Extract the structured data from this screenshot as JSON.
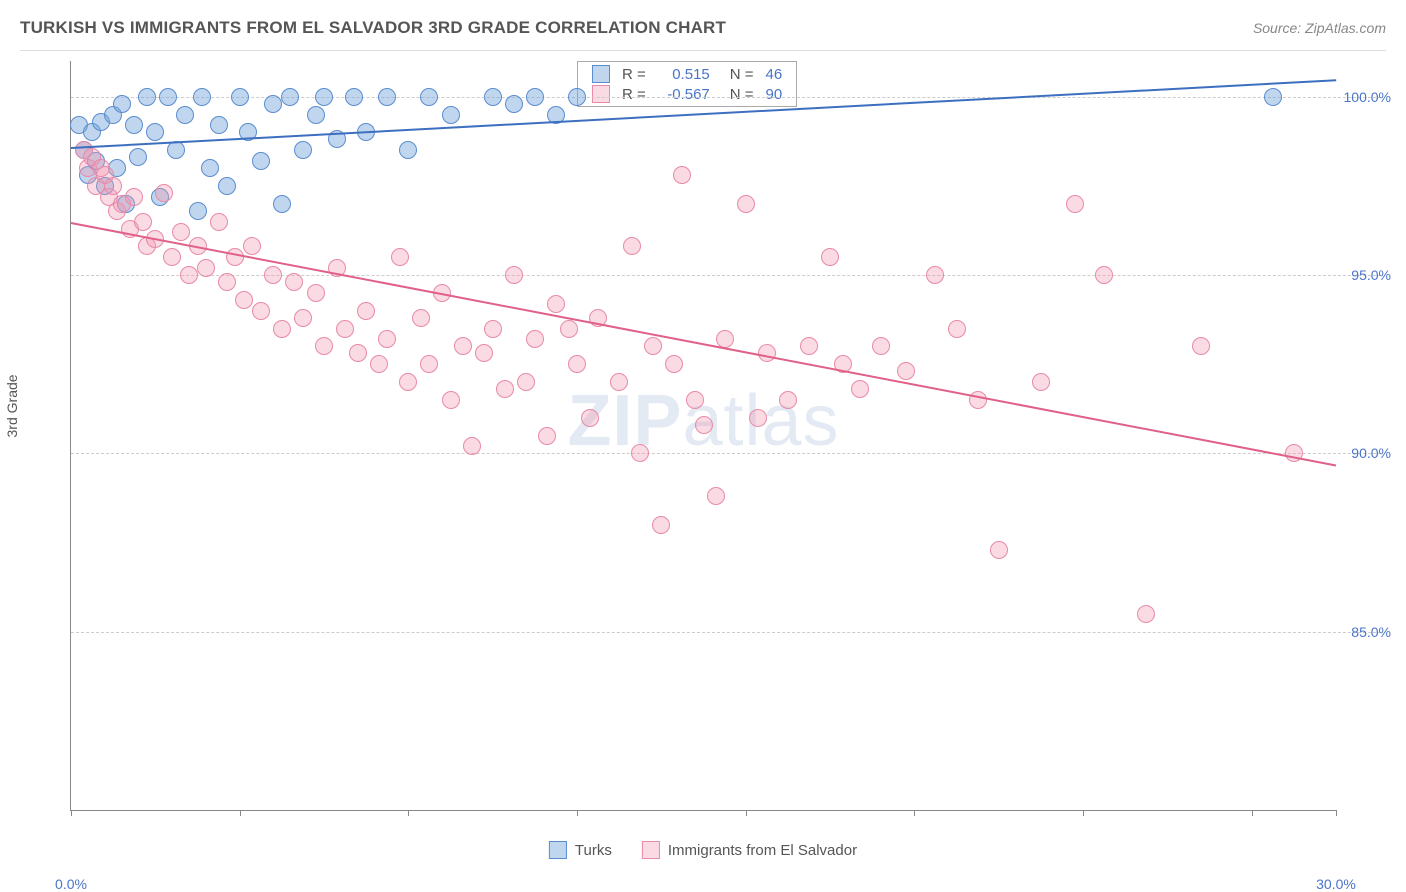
{
  "title": "TURKISH VS IMMIGRANTS FROM EL SALVADOR 3RD GRADE CORRELATION CHART",
  "source": "Source: ZipAtlas.com",
  "ylabel": "3rd Grade",
  "watermark_bold": "ZIP",
  "watermark_rest": "atlas",
  "chart": {
    "type": "scatter",
    "xlim": [
      0,
      30
    ],
    "ylim": [
      80,
      101
    ],
    "xticks": [
      0,
      4,
      8,
      12,
      16,
      20,
      24,
      28,
      30
    ],
    "xtick_labels": {
      "0": "0.0%",
      "30": "30.0%"
    },
    "yticks": [
      85,
      90,
      95,
      100
    ],
    "ytick_labels": {
      "85": "85.0%",
      "90": "90.0%",
      "95": "95.0%",
      "100": "100.0%"
    },
    "background_color": "#ffffff",
    "grid_color": "#cccccc",
    "axis_color": "#888888",
    "tick_label_color": "#4a74c9",
    "marker_radius": 9,
    "marker_border_width": 1.5,
    "line_width": 2
  },
  "series": [
    {
      "name": "Turks",
      "fill": "rgba(115,165,220,0.45)",
      "stroke": "#5a8dce",
      "line_color": "#3d6fc0",
      "R_label": "R =",
      "R_value": "0.515",
      "N_label": "N =",
      "N_value": "46",
      "regression": {
        "x1": 0,
        "y1": 98.6,
        "x2": 30,
        "y2": 100.5
      },
      "points": [
        [
          0.2,
          99.2
        ],
        [
          0.3,
          98.5
        ],
        [
          0.4,
          97.8
        ],
        [
          0.5,
          99.0
        ],
        [
          0.6,
          98.2
        ],
        [
          0.7,
          99.3
        ],
        [
          0.8,
          97.5
        ],
        [
          1.0,
          99.5
        ],
        [
          1.1,
          98.0
        ],
        [
          1.2,
          99.8
        ],
        [
          1.3,
          97.0
        ],
        [
          1.5,
          99.2
        ],
        [
          1.6,
          98.3
        ],
        [
          1.8,
          100.0
        ],
        [
          2.0,
          99.0
        ],
        [
          2.1,
          97.2
        ],
        [
          2.3,
          100.0
        ],
        [
          2.5,
          98.5
        ],
        [
          2.7,
          99.5
        ],
        [
          3.0,
          96.8
        ],
        [
          3.1,
          100.0
        ],
        [
          3.3,
          98.0
        ],
        [
          3.5,
          99.2
        ],
        [
          3.7,
          97.5
        ],
        [
          4.0,
          100.0
        ],
        [
          4.2,
          99.0
        ],
        [
          4.5,
          98.2
        ],
        [
          4.8,
          99.8
        ],
        [
          5.0,
          97.0
        ],
        [
          5.2,
          100.0
        ],
        [
          5.5,
          98.5
        ],
        [
          5.8,
          99.5
        ],
        [
          6.0,
          100.0
        ],
        [
          6.3,
          98.8
        ],
        [
          6.7,
          100.0
        ],
        [
          7.0,
          99.0
        ],
        [
          7.5,
          100.0
        ],
        [
          8.0,
          98.5
        ],
        [
          8.5,
          100.0
        ],
        [
          9.0,
          99.5
        ],
        [
          10.0,
          100.0
        ],
        [
          10.5,
          99.8
        ],
        [
          11.0,
          100.0
        ],
        [
          11.5,
          99.5
        ],
        [
          12.0,
          100.0
        ],
        [
          28.5,
          100.0
        ]
      ]
    },
    {
      "name": "Immigrants from El Salvador",
      "fill": "rgba(240,150,175,0.35)",
      "stroke": "#e88aa8",
      "line_color": "#e06088",
      "R_label": "R =",
      "R_value": "-0.567",
      "N_label": "N =",
      "N_value": "90",
      "regression": {
        "x1": 0,
        "y1": 96.5,
        "x2": 30,
        "y2": 89.7
      },
      "points": [
        [
          0.3,
          98.5
        ],
        [
          0.4,
          98.0
        ],
        [
          0.5,
          98.3
        ],
        [
          0.6,
          97.5
        ],
        [
          0.7,
          98.0
        ],
        [
          0.8,
          97.8
        ],
        [
          0.9,
          97.2
        ],
        [
          1.0,
          97.5
        ],
        [
          1.1,
          96.8
        ],
        [
          1.2,
          97.0
        ],
        [
          1.4,
          96.3
        ],
        [
          1.5,
          97.2
        ],
        [
          1.7,
          96.5
        ],
        [
          1.8,
          95.8
        ],
        [
          2.0,
          96.0
        ],
        [
          2.2,
          97.3
        ],
        [
          2.4,
          95.5
        ],
        [
          2.6,
          96.2
        ],
        [
          2.8,
          95.0
        ],
        [
          3.0,
          95.8
        ],
        [
          3.2,
          95.2
        ],
        [
          3.5,
          96.5
        ],
        [
          3.7,
          94.8
        ],
        [
          3.9,
          95.5
        ],
        [
          4.1,
          94.3
        ],
        [
          4.3,
          95.8
        ],
        [
          4.5,
          94.0
        ],
        [
          4.8,
          95.0
        ],
        [
          5.0,
          93.5
        ],
        [
          5.3,
          94.8
        ],
        [
          5.5,
          93.8
        ],
        [
          5.8,
          94.5
        ],
        [
          6.0,
          93.0
        ],
        [
          6.3,
          95.2
        ],
        [
          6.5,
          93.5
        ],
        [
          6.8,
          92.8
        ],
        [
          7.0,
          94.0
        ],
        [
          7.3,
          92.5
        ],
        [
          7.5,
          93.2
        ],
        [
          7.8,
          95.5
        ],
        [
          8.0,
          92.0
        ],
        [
          8.3,
          93.8
        ],
        [
          8.5,
          92.5
        ],
        [
          8.8,
          94.5
        ],
        [
          9.0,
          91.5
        ],
        [
          9.3,
          93.0
        ],
        [
          9.5,
          90.2
        ],
        [
          9.8,
          92.8
        ],
        [
          10.0,
          93.5
        ],
        [
          10.3,
          91.8
        ],
        [
          10.5,
          95.0
        ],
        [
          10.8,
          92.0
        ],
        [
          11.0,
          93.2
        ],
        [
          11.3,
          90.5
        ],
        [
          11.5,
          94.2
        ],
        [
          11.8,
          93.5
        ],
        [
          12.0,
          92.5
        ],
        [
          12.3,
          91.0
        ],
        [
          12.5,
          93.8
        ],
        [
          13.0,
          92.0
        ],
        [
          13.3,
          95.8
        ],
        [
          13.5,
          90.0
        ],
        [
          13.8,
          93.0
        ],
        [
          14.0,
          88.0
        ],
        [
          14.3,
          92.5
        ],
        [
          14.5,
          97.8
        ],
        [
          14.8,
          91.5
        ],
        [
          15.0,
          90.8
        ],
        [
          15.3,
          88.8
        ],
        [
          15.5,
          93.2
        ],
        [
          16.0,
          97.0
        ],
        [
          16.3,
          91.0
        ],
        [
          16.5,
          92.8
        ],
        [
          17.0,
          91.5
        ],
        [
          17.5,
          93.0
        ],
        [
          18.0,
          95.5
        ],
        [
          18.3,
          92.5
        ],
        [
          18.7,
          91.8
        ],
        [
          19.2,
          93.0
        ],
        [
          19.8,
          92.3
        ],
        [
          20.5,
          95.0
        ],
        [
          21.0,
          93.5
        ],
        [
          21.5,
          91.5
        ],
        [
          22.0,
          87.3
        ],
        [
          23.0,
          92.0
        ],
        [
          23.8,
          97.0
        ],
        [
          24.5,
          95.0
        ],
        [
          25.5,
          85.5
        ],
        [
          26.8,
          93.0
        ],
        [
          29.0,
          90.0
        ]
      ]
    }
  ],
  "legend_bottom": [
    {
      "label": "Turks"
    },
    {
      "label": "Immigrants from El Salvador"
    }
  ]
}
